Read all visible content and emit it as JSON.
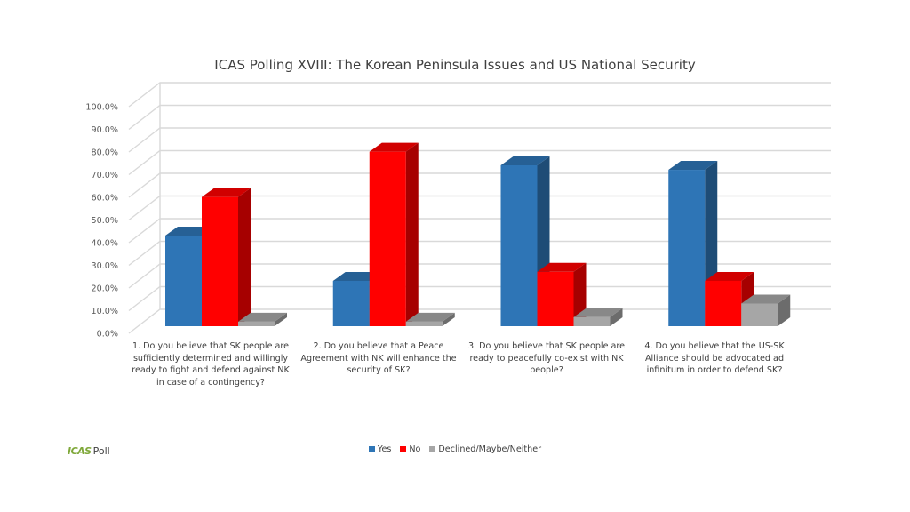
{
  "chart_data": {
    "type": "bar",
    "title": "ICAS Polling XVIII: The Korean Peninsula Issues and US National Security",
    "y_ticks": [
      "0.0%",
      "10.0%",
      "20.0%",
      "30.0%",
      "40.0%",
      "50.0%",
      "60.0%",
      "70.0%",
      "80.0%",
      "90.0%",
      "100.0%"
    ],
    "ylim": [
      0,
      100
    ],
    "grid": true,
    "legend_position": "bottom",
    "categories": [
      "1.        Do you believe that SK people are sufficiently determined and willingly ready to fight and defend against NK in case of a contingency?",
      "2.        Do you believe that a Peace Agreement with NK will enhance the security of SK?",
      "3.        Do you believe that SK people are ready to peacefully co-exist with NK people?",
      "4.        Do you believe that the US-SK Alliance should be advocated ad infinitum in order to defend SK?"
    ],
    "series": [
      {
        "name": "Yes",
        "color": "#2e75b6",
        "values": [
          40,
          20,
          71,
          69
        ]
      },
      {
        "name": "No",
        "color": "#ff0000",
        "values": [
          57,
          77,
          24,
          20
        ]
      },
      {
        "name": "Declined/Maybe/Neither",
        "color": "#a6a6a6",
        "values": [
          2,
          2,
          4,
          10
        ]
      }
    ]
  },
  "logo": {
    "mark": "ICAS",
    "text": "Poll"
  }
}
